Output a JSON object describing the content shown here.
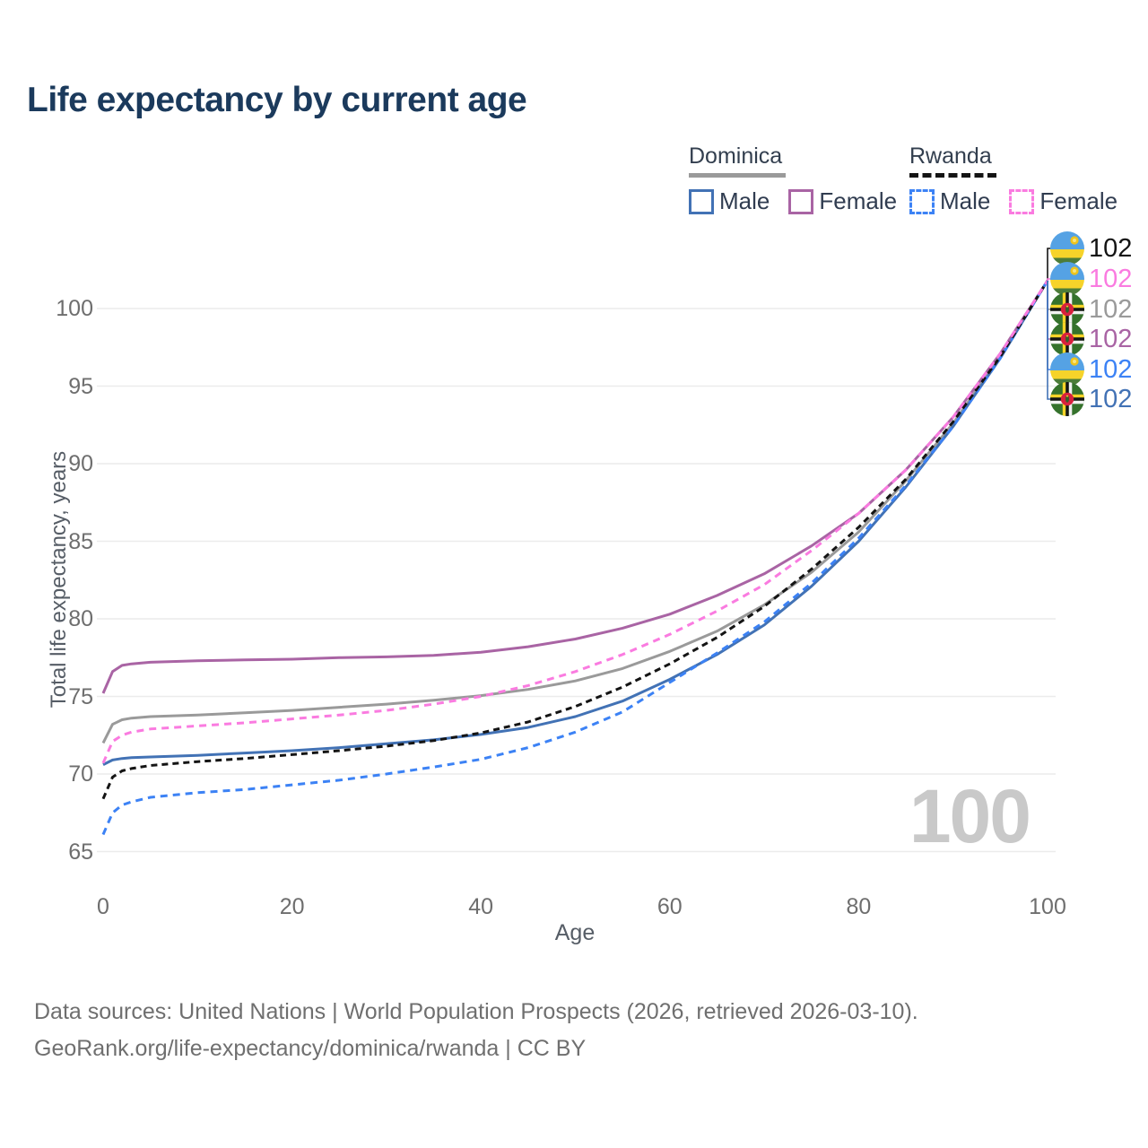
{
  "title": "Life expectancy by current age",
  "legend": {
    "groups": [
      {
        "country": "Dominica",
        "line_style": "solid",
        "underline_color": "#9a9a9a",
        "items": [
          {
            "label": "Male",
            "color": "#4272b5",
            "dashed": false
          },
          {
            "label": "Female",
            "color": "#a964a4",
            "dashed": false
          }
        ]
      },
      {
        "country": "Rwanda",
        "line_style": "dashed",
        "underline_color": "#141414",
        "items": [
          {
            "label": "Male",
            "color": "#3c82f5",
            "dashed": true
          },
          {
            "label": "Female",
            "color": "#fa7be0",
            "dashed": true
          }
        ]
      }
    ]
  },
  "chart_data": {
    "type": "line",
    "title": "Life expectancy by current age",
    "xlabel": "Age",
    "ylabel": "Total life expectancy, years",
    "xlim": [
      0,
      100
    ],
    "ylim": [
      65,
      102.5
    ],
    "x_ticks": [
      0,
      20,
      40,
      60,
      80,
      100
    ],
    "y_ticks": [
      65,
      70,
      75,
      80,
      85,
      90,
      95,
      100
    ],
    "grid": "horizontal",
    "legend_position": "top-right",
    "age_counter_watermark": "100",
    "x": [
      0,
      1,
      2,
      3,
      5,
      10,
      15,
      20,
      25,
      30,
      35,
      40,
      45,
      50,
      55,
      60,
      65,
      70,
      75,
      80,
      85,
      90,
      95,
      100
    ],
    "series": [
      {
        "id": "dominica-total",
        "name": "Dominica",
        "color": "#9a9a9a",
        "dash": null,
        "values": [
          72.0,
          73.2,
          73.5,
          73.6,
          73.7,
          73.8,
          73.95,
          74.1,
          74.3,
          74.5,
          74.75,
          75.05,
          75.45,
          76.0,
          76.8,
          77.9,
          79.2,
          80.9,
          83.0,
          85.6,
          88.9,
          92.6,
          96.9,
          101.8
        ]
      },
      {
        "id": "dominica-male",
        "name": "Dominica Male",
        "color": "#4272b5",
        "dash": null,
        "values": [
          70.6,
          70.9,
          71.0,
          71.05,
          71.1,
          71.2,
          71.35,
          71.5,
          71.7,
          71.95,
          72.2,
          72.55,
          73.0,
          73.7,
          74.7,
          76.1,
          77.7,
          79.6,
          82.1,
          85.0,
          88.5,
          92.4,
          96.8,
          101.8
        ]
      },
      {
        "id": "dominica-female",
        "name": "Dominica Female",
        "color": "#a964a4",
        "dash": null,
        "values": [
          75.2,
          76.6,
          77.0,
          77.1,
          77.2,
          77.3,
          77.35,
          77.4,
          77.5,
          77.55,
          77.65,
          77.85,
          78.2,
          78.7,
          79.4,
          80.3,
          81.5,
          82.9,
          84.7,
          86.8,
          89.6,
          93.0,
          97.1,
          101.8
        ]
      },
      {
        "id": "rwanda-male",
        "name": "Rwanda Male",
        "color": "#3c82f5",
        "dash": "8 6",
        "values": [
          66.1,
          67.5,
          68.0,
          68.2,
          68.5,
          68.8,
          69.0,
          69.3,
          69.6,
          70.0,
          70.45,
          70.95,
          71.7,
          72.7,
          74.0,
          75.9,
          77.8,
          79.8,
          82.3,
          85.2,
          88.6,
          92.4,
          96.8,
          101.8
        ]
      },
      {
        "id": "rwanda-total",
        "name": "Rwanda",
        "color": "#141414",
        "dash": "7 5",
        "values": [
          68.4,
          69.8,
          70.2,
          70.35,
          70.55,
          70.8,
          71.0,
          71.25,
          71.5,
          71.8,
          72.15,
          72.65,
          73.35,
          74.35,
          75.6,
          77.1,
          78.8,
          80.8,
          83.2,
          85.9,
          89.0,
          92.7,
          96.9,
          101.8
        ]
      },
      {
        "id": "rwanda-female",
        "name": "Rwanda Female",
        "color": "#fa7be0",
        "dash": "8 6",
        "values": [
          70.7,
          72.1,
          72.5,
          72.7,
          72.9,
          73.1,
          73.3,
          73.55,
          73.8,
          74.1,
          74.5,
          75.0,
          75.7,
          76.6,
          77.7,
          79.0,
          80.5,
          82.2,
          84.4,
          86.8,
          89.6,
          93.0,
          97.1,
          101.8
        ]
      }
    ],
    "end_labels": [
      {
        "value": "102",
        "flag": "rwanda",
        "series": "rwanda-total",
        "color": "#141414"
      },
      {
        "value": "102",
        "flag": "rwanda",
        "series": "rwanda-female",
        "color": "#fa7be0"
      },
      {
        "value": "102",
        "flag": "dominica",
        "series": "dominica-total",
        "color": "#9a9a9a"
      },
      {
        "value": "102",
        "flag": "dominica",
        "series": "dominica-female",
        "color": "#a964a4"
      },
      {
        "value": "102",
        "flag": "rwanda",
        "series": "rwanda-male",
        "color": "#3c82f5"
      },
      {
        "value": "102",
        "flag": "dominica",
        "series": "dominica-male",
        "color": "#4272b5"
      }
    ]
  },
  "watermark": "100",
  "footer": {
    "line1": "Data sources: United Nations | World Population Prospects (2026, retrieved 2026-03-10).",
    "line2": "GeoRank.org/life-expectancy/dominica/rwanda | CC BY"
  }
}
